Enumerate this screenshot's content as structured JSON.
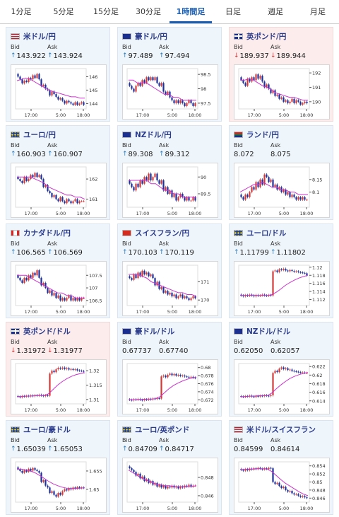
{
  "tabs": [
    "1分足",
    "5分足",
    "15分足",
    "30分足",
    "1時間足",
    "日足",
    "週足",
    "月足"
  ],
  "active_tab": 4,
  "labels": {
    "bid": "Bid",
    "ask": "Ask"
  },
  "x_ticks": [
    "17:00",
    "5:00",
    "18:00"
  ],
  "colors": {
    "up_candle": "#d23a3a",
    "down_candle": "#1d2f9a",
    "ma_line": "#cc33cc",
    "ma2_line": "#33aadd",
    "axis": "#555555"
  },
  "pairs": [
    {
      "name": "米ドル/円",
      "flag": "us",
      "trend": "up",
      "bid": "143.922",
      "ask": "143.924",
      "ticks": [
        "146",
        "145",
        "144"
      ],
      "ylim": [
        143.6,
        146.6
      ],
      "candles": [
        146.0,
        145.8,
        145.5,
        145.7,
        145.6,
        145.9,
        145.8,
        146.1,
        145.9,
        146.2,
        145.8,
        145.3,
        145.4,
        145.1,
        145.0,
        144.6,
        144.9,
        144.7,
        144.5,
        144.3,
        144.4,
        144.2,
        144.0,
        144.2,
        144.1,
        144.0,
        143.9,
        144.1,
        143.9,
        144.0,
        144.1,
        143.9
      ],
      "ma": [
        145.7,
        145.8,
        145.9,
        145.8,
        145.6,
        145.4,
        145.2,
        145.0,
        144.9,
        144.8,
        144.7,
        144.6,
        144.5,
        144.5,
        144.4,
        144.4
      ]
    },
    {
      "name": "豪ドル/円",
      "flag": "au",
      "trend": "up",
      "bid": "97.489",
      "ask": "97.494",
      "ticks": [
        "98.5",
        "98",
        "97.5"
      ],
      "ylim": [
        97.3,
        98.7
      ],
      "candles": [
        98.1,
        98.0,
        97.9,
        98.1,
        98.2,
        98.1,
        98.3,
        98.2,
        98.4,
        98.3,
        98.4,
        98.3,
        98.4,
        98.2,
        98.1,
        98.2,
        97.9,
        97.8,
        97.9,
        97.7,
        97.6,
        97.5,
        97.6,
        97.5,
        97.6,
        97.5,
        97.4,
        97.5,
        97.6,
        97.5,
        97.4,
        97.5
      ],
      "ma": [
        98.3,
        98.3,
        98.2,
        98.2,
        98.2,
        98.1,
        98.0,
        97.9,
        97.8,
        97.8,
        97.7,
        97.7,
        97.6,
        97.6,
        97.6,
        97.6
      ]
    },
    {
      "name": "英ポンド/円",
      "flag": "gb",
      "trend": "down",
      "bid": "189.937",
      "ask": "189.944",
      "ticks": [
        "192",
        "191",
        "190"
      ],
      "ylim": [
        189.5,
        192.3
      ],
      "candles": [
        191.5,
        191.3,
        191.1,
        191.6,
        191.4,
        191.7,
        191.5,
        191.9,
        191.6,
        191.8,
        191.4,
        191.0,
        191.2,
        190.9,
        190.6,
        190.8,
        190.4,
        190.5,
        190.2,
        190.3,
        190.0,
        190.1,
        189.9,
        190.0,
        190.2,
        189.9,
        190.1,
        190.0,
        189.8,
        189.9,
        190.0,
        189.9
      ],
      "ma": [
        191.5,
        191.5,
        191.6,
        191.5,
        191.3,
        191.1,
        191.0,
        190.8,
        190.6,
        190.5,
        190.4,
        190.3,
        190.3,
        190.2,
        190.1,
        190.1
      ]
    },
    {
      "name": "ユーロ/円",
      "flag": "eu",
      "trend": "up",
      "bid": "160.903",
      "ask": "160.907",
      "ticks": [
        "162",
        "161"
      ],
      "ylim": [
        160.6,
        162.6
      ],
      "candles": [
        162.0,
        161.9,
        161.8,
        162.1,
        161.9,
        162.0,
        162.2,
        162.1,
        162.3,
        162.1,
        162.2,
        162.0,
        161.6,
        161.7,
        161.4,
        161.3,
        161.1,
        161.2,
        161.0,
        160.9,
        161.1,
        160.9,
        160.8,
        161.0,
        160.9,
        160.8,
        160.9,
        161.0,
        160.8,
        160.9,
        160.9,
        160.9
      ],
      "ma": [
        162.1,
        162.1,
        162.1,
        162.1,
        162.0,
        161.9,
        161.8,
        161.6,
        161.5,
        161.4,
        161.3,
        161.2,
        161.2,
        161.1,
        161.1,
        161.0
      ]
    },
    {
      "name": "NZドル/円",
      "flag": "nz",
      "trend": "up",
      "bid": "89.308",
      "ask": "89.312",
      "ticks": [
        "90",
        "89.5"
      ],
      "ylim": [
        89.1,
        90.3
      ],
      "candles": [
        89.8,
        89.7,
        89.6,
        89.8,
        89.7,
        89.9,
        89.8,
        90.0,
        89.9,
        90.1,
        89.9,
        90.0,
        90.1,
        89.9,
        89.8,
        89.9,
        89.6,
        89.7,
        89.5,
        89.6,
        89.4,
        89.5,
        89.3,
        89.4,
        89.5,
        89.4,
        89.3,
        89.4,
        89.3,
        89.3,
        89.4,
        89.3
      ],
      "ma": [
        89.9,
        89.9,
        89.9,
        89.9,
        89.9,
        89.8,
        89.8,
        89.7,
        89.6,
        89.6,
        89.5,
        89.5,
        89.4,
        89.4,
        89.4,
        89.4
      ]
    },
    {
      "name": "ランド/円",
      "flag": "za",
      "trend": "none",
      "bid": "8.072",
      "ask": "8.075",
      "ticks": [
        "8.15",
        "8.1"
      ],
      "ylim": [
        8.04,
        8.2
      ],
      "candles": [
        8.08,
        8.07,
        8.09,
        8.08,
        8.1,
        8.12,
        8.11,
        8.14,
        8.12,
        8.15,
        8.13,
        8.17,
        8.16,
        8.14,
        8.15,
        8.12,
        8.13,
        8.11,
        8.12,
        8.1,
        8.11,
        8.09,
        8.1,
        8.08,
        8.09,
        8.08,
        8.07,
        8.08,
        8.07,
        8.08,
        8.07,
        8.07
      ],
      "ma": [
        8.1,
        8.11,
        8.12,
        8.13,
        8.13,
        8.14,
        8.13,
        8.12,
        8.12,
        8.11,
        8.11,
        8.1,
        8.1,
        8.09,
        8.09,
        8.09
      ]
    },
    {
      "name": "カナダドル/円",
      "flag": "ca",
      "trend": "up",
      "bid": "106.565",
      "ask": "106.569",
      "ticks": [
        "107.5",
        "107",
        "106.5"
      ],
      "ylim": [
        106.3,
        107.9
      ],
      "candles": [
        107.4,
        107.3,
        107.2,
        107.4,
        107.3,
        107.5,
        107.4,
        107.6,
        107.5,
        107.7,
        107.4,
        107.1,
        107.2,
        107.0,
        106.8,
        106.9,
        106.7,
        106.8,
        106.6,
        106.7,
        106.5,
        106.6,
        106.5,
        106.6,
        106.7,
        106.5,
        106.6,
        106.5,
        106.6,
        106.5,
        106.6,
        106.6
      ],
      "ma": [
        107.5,
        107.5,
        107.5,
        107.4,
        107.3,
        107.2,
        107.1,
        107.0,
        106.9,
        106.8,
        106.8,
        106.7,
        106.7,
        106.6,
        106.6,
        106.6
      ]
    },
    {
      "name": "スイスフラン/円",
      "flag": "ch",
      "trend": "up",
      "bid": "170.103",
      "ask": "170.119",
      "ticks": [
        "171",
        "170"
      ],
      "ylim": [
        169.7,
        171.9
      ],
      "candles": [
        171.2,
        171.1,
        171.4,
        171.2,
        171.5,
        171.3,
        171.6,
        171.4,
        171.5,
        171.3,
        171.4,
        171.2,
        170.8,
        171.0,
        170.6,
        170.7,
        170.4,
        170.5,
        170.3,
        170.4,
        170.2,
        170.3,
        170.1,
        170.2,
        170.3,
        170.1,
        170.2,
        170.1,
        170.0,
        170.1,
        170.2,
        170.1
      ],
      "ma": [
        171.4,
        171.4,
        171.4,
        171.3,
        171.2,
        171.0,
        170.9,
        170.8,
        170.7,
        170.6,
        170.5,
        170.4,
        170.4,
        170.3,
        170.3,
        170.2
      ]
    },
    {
      "name": "ユーロ/ドル",
      "flag": "eu",
      "trend": "up",
      "bid": "1.11799",
      "ask": "1.11802",
      "ticks": [
        "1.12",
        "1.118",
        "1.116",
        "1.114",
        "1.112"
      ],
      "ylim": [
        1.1105,
        1.1205
      ],
      "candles": [
        1.113,
        1.1128,
        1.1131,
        1.1129,
        1.1132,
        1.113,
        1.1128,
        1.1131,
        1.1129,
        1.113,
        1.1132,
        1.113,
        1.1129,
        1.1131,
        1.113,
        1.119,
        1.1192,
        1.1188,
        1.1195,
        1.1193,
        1.1196,
        1.1192,
        1.119,
        1.1193,
        1.1191,
        1.1189,
        1.119,
        1.1188,
        1.1187,
        1.1186,
        1.1185,
        1.118
      ],
      "ma": [
        1.113,
        1.113,
        1.113,
        1.113,
        1.113,
        1.113,
        1.113,
        1.1132,
        1.1138,
        1.1146,
        1.1155,
        1.1162,
        1.1168,
        1.1173,
        1.1177,
        1.118
      ]
    },
    {
      "name": "英ポンド/ドル",
      "flag": "gb",
      "trend": "down",
      "bid": "1.31972",
      "ask": "1.31977",
      "ticks": [
        "1.32",
        "1.315",
        "1.31"
      ],
      "ylim": [
        1.3085,
        1.3225
      ],
      "candles": [
        1.311,
        1.3108,
        1.3112,
        1.311,
        1.3113,
        1.3111,
        1.3114,
        1.3112,
        1.3115,
        1.3113,
        1.3116,
        1.3114,
        1.3112,
        1.3115,
        1.3113,
        1.319,
        1.32,
        1.3195,
        1.3205,
        1.321,
        1.3207,
        1.3211,
        1.3206,
        1.3209,
        1.3204,
        1.3206,
        1.3203,
        1.3205,
        1.3201,
        1.32,
        1.3199,
        1.3197
      ],
      "ma": [
        1.311,
        1.3111,
        1.3112,
        1.3112,
        1.3113,
        1.3114,
        1.3114,
        1.312,
        1.3135,
        1.315,
        1.3162,
        1.3172,
        1.318,
        1.3186,
        1.319,
        1.3193
      ]
    },
    {
      "name": "豪ドル/ドル",
      "flag": "au",
      "trend": "none",
      "bid": "0.67737",
      "ask": "0.67740",
      "ticks": [
        "0.68",
        "0.678",
        "0.676",
        "0.674",
        "0.672"
      ],
      "ylim": [
        0.671,
        0.681
      ],
      "candles": [
        0.672,
        0.6719,
        0.6721,
        0.672,
        0.6722,
        0.672,
        0.6719,
        0.6721,
        0.672,
        0.6722,
        0.6721,
        0.6723,
        0.6722,
        0.6724,
        0.6723,
        0.6778,
        0.678,
        0.6776,
        0.6782,
        0.6785,
        0.6781,
        0.6784,
        0.678,
        0.6782,
        0.6779,
        0.678,
        0.6778,
        0.6777,
        0.6776,
        0.6777,
        0.6775,
        0.6774
      ],
      "ma": [
        0.672,
        0.672,
        0.6721,
        0.6721,
        0.6722,
        0.6722,
        0.6723,
        0.6728,
        0.6738,
        0.6748,
        0.6756,
        0.6762,
        0.6767,
        0.6771,
        0.6774,
        0.6776
      ]
    },
    {
      "name": "NZドル/ドル",
      "flag": "nz",
      "trend": "none",
      "bid": "0.62050",
      "ask": "0.62057",
      "ticks": [
        "0.622",
        "0.62",
        "0.618",
        "0.616",
        "0.614"
      ],
      "ylim": [
        0.6133,
        0.6227
      ],
      "candles": [
        0.615,
        0.6149,
        0.6151,
        0.615,
        0.6152,
        0.615,
        0.6149,
        0.6151,
        0.615,
        0.6152,
        0.6151,
        0.6153,
        0.6152,
        0.6151,
        0.6153,
        0.6205,
        0.621,
        0.6207,
        0.6215,
        0.6218,
        0.6214,
        0.6216,
        0.6212,
        0.6213,
        0.621,
        0.6209,
        0.6208,
        0.6207,
        0.6206,
        0.6206,
        0.6205,
        0.6205
      ],
      "ma": [
        0.615,
        0.615,
        0.6151,
        0.6151,
        0.6152,
        0.6152,
        0.6152,
        0.6158,
        0.6168,
        0.6177,
        0.6185,
        0.6192,
        0.6197,
        0.6201,
        0.6204,
        0.6206
      ]
    },
    {
      "name": "ユーロ/豪ドル",
      "flag": "eu",
      "trend": "up",
      "bid": "1.65039",
      "ask": "1.65053",
      "ticks": [
        "1.655",
        "1.65"
      ],
      "ylim": [
        1.6465,
        1.6575
      ],
      "candles": [
        1.6555,
        1.655,
        1.6545,
        1.6552,
        1.6548,
        1.6556,
        1.6551,
        1.6558,
        1.6553,
        1.655,
        1.6545,
        1.652,
        1.6525,
        1.651,
        1.6505,
        1.649,
        1.6495,
        1.6485,
        1.648,
        1.649,
        1.6485,
        1.6495,
        1.65,
        1.6497,
        1.6503,
        1.65,
        1.6505,
        1.6502,
        1.6506,
        1.6503,
        1.6505,
        1.6504
      ],
      "ma": [
        1.6555,
        1.6555,
        1.6553,
        1.655,
        1.6545,
        1.6538,
        1.653,
        1.6522,
        1.6515,
        1.651,
        1.6506,
        1.6503,
        1.6502,
        1.6502,
        1.6503,
        1.6504
      ]
    },
    {
      "name": "ユーロ/英ポンド",
      "flag": "eu",
      "trend": "up",
      "bid": "0.84709",
      "ask": "0.84717",
      "ticks": [
        "0.848",
        "0.846"
      ],
      "ylim": [
        0.8453,
        0.8497
      ],
      "candles": [
        0.849,
        0.8488,
        0.8486,
        0.8482,
        0.8484,
        0.8479,
        0.8481,
        0.8476,
        0.8478,
        0.8474,
        0.8476,
        0.8472,
        0.8474,
        0.847,
        0.8472,
        0.8469,
        0.8471,
        0.8468,
        0.847,
        0.8469,
        0.8471,
        0.8469,
        0.847,
        0.8468,
        0.847,
        0.8469,
        0.8471,
        0.847,
        0.8472,
        0.847,
        0.8471,
        0.8471
      ],
      "ma": [
        0.8488,
        0.8485,
        0.8482,
        0.8479,
        0.8477,
        0.8475,
        0.8473,
        0.8472,
        0.8471,
        0.8471,
        0.847,
        0.847,
        0.847,
        0.847,
        0.847,
        0.8471
      ]
    },
    {
      "name": "米ドル/スイスフラン",
      "flag": "us",
      "trend": "none",
      "bid": "0.84599",
      "ask": "0.84614",
      "ticks": [
        "0.854",
        "0.852",
        "0.85",
        "0.848",
        "0.846"
      ],
      "ylim": [
        0.845,
        0.855
      ],
      "candles": [
        0.853,
        0.8528,
        0.8532,
        0.8529,
        0.8533,
        0.8531,
        0.8534,
        0.8532,
        0.8535,
        0.8533,
        0.8531,
        0.8534,
        0.8532,
        0.8535,
        0.8534,
        0.85,
        0.8495,
        0.8498,
        0.849,
        0.8485,
        0.8488,
        0.848,
        0.8476,
        0.8478,
        0.8472,
        0.8469,
        0.847,
        0.8466,
        0.8463,
        0.8465,
        0.8462,
        0.846
      ],
      "ma": [
        0.8531,
        0.8531,
        0.8532,
        0.8532,
        0.8533,
        0.8533,
        0.8532,
        0.8526,
        0.8516,
        0.8506,
        0.8497,
        0.849,
        0.8483,
        0.8476,
        0.847,
        0.8466
      ]
    }
  ]
}
